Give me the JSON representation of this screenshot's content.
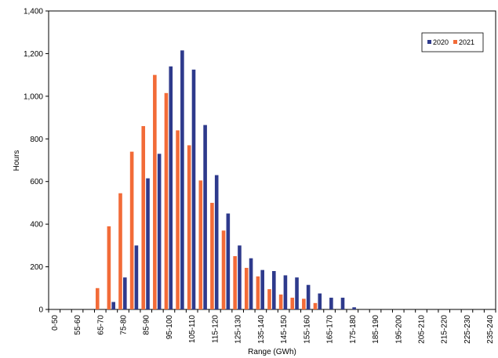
{
  "chart_data": {
    "type": "bar",
    "title": "",
    "xlabel": "Range (GWh)",
    "ylabel": "Hours",
    "ylim": [
      0,
      1400
    ],
    "yticks": [
      0,
      200,
      400,
      600,
      800,
      1000,
      1200,
      1400
    ],
    "ytick_labels": [
      "0",
      "200",
      "400",
      "600",
      "800",
      "1,000",
      "1,200",
      "1,400"
    ],
    "categories": [
      "0-50",
      "50-55",
      "55-60",
      "60-65",
      "65-70",
      "70-75",
      "75-80",
      "80-85",
      "85-90",
      "90-95",
      "95-100",
      "100-105",
      "105-110",
      "110-115",
      "115-120",
      "120-125",
      "125-130",
      "130-135",
      "135-140",
      "140-145",
      "145-150",
      "150-155",
      "155-160",
      "160-165",
      "165-170",
      "170-175",
      "175-180",
      "180-185",
      "185-190",
      "190-195",
      "195-200",
      "200-205",
      "205-210",
      "210-215",
      "215-220",
      "220-225",
      "225-230",
      "230-235",
      "235-240"
    ],
    "xtick_labels": [
      "0-50",
      "",
      "55-60",
      "",
      "65-70",
      "",
      "75-80",
      "",
      "85-90",
      "",
      "95-100",
      "",
      "105-110",
      "",
      "115-120",
      "",
      "125-130",
      "",
      "135-140",
      "",
      "145-150",
      "",
      "155-160",
      "",
      "165-170",
      "",
      "175-180",
      "",
      "185-190",
      "",
      "195-200",
      "",
      "205-210",
      "",
      "215-220",
      "",
      "225-230",
      "",
      "235-240"
    ],
    "series": [
      {
        "name": "2020",
        "color": "#2e3a8c",
        "values": [
          0,
          0,
          0,
          0,
          0,
          35,
          150,
          300,
          615,
          730,
          1140,
          1215,
          1125,
          865,
          630,
          450,
          300,
          240,
          185,
          180,
          160,
          150,
          115,
          75,
          55,
          55,
          10,
          0,
          0,
          0,
          0,
          0,
          0,
          0,
          0,
          0,
          0,
          0,
          0
        ]
      },
      {
        "name": "2021",
        "color": "#f26b38",
        "values": [
          0,
          0,
          0,
          0,
          100,
          390,
          545,
          740,
          860,
          1100,
          1015,
          840,
          770,
          605,
          500,
          370,
          250,
          195,
          155,
          95,
          70,
          55,
          50,
          30,
          0,
          0,
          0,
          0,
          0,
          0,
          0,
          0,
          0,
          0,
          0,
          0,
          0,
          0,
          0
        ]
      }
    ],
    "grid": false,
    "legend_position": "top-right"
  }
}
